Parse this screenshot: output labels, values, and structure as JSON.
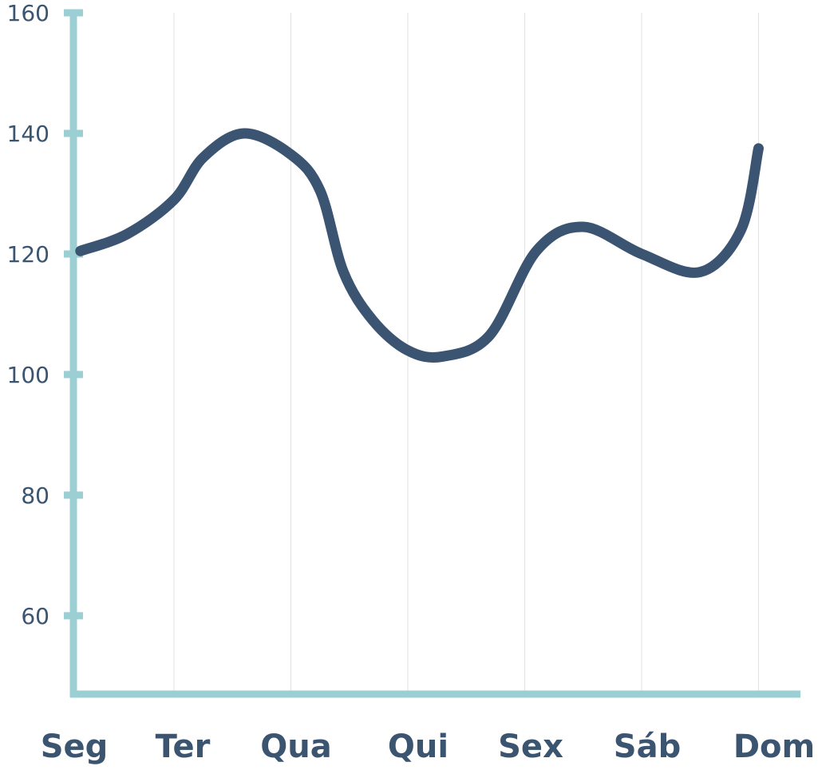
{
  "chart_data": {
    "type": "line",
    "categories": [
      "Seg",
      "Ter",
      "Qua",
      "Qui",
      "Sex",
      "Sáb",
      "Dom"
    ],
    "x_positions": [
      0.2,
      1.0,
      2.0,
      3.0,
      4.0,
      5.0,
      6.0
    ],
    "curve_points": [
      {
        "x": 0.2,
        "y": 120.5
      },
      {
        "x": 0.6,
        "y": 123.3
      },
      {
        "x": 1.0,
        "y": 129.0
      },
      {
        "x": 1.25,
        "y": 136.0
      },
      {
        "x": 1.6,
        "y": 140.0
      },
      {
        "x": 2.0,
        "y": 136.5
      },
      {
        "x": 2.25,
        "y": 130.5
      },
      {
        "x": 2.45,
        "y": 117.0
      },
      {
        "x": 2.7,
        "y": 109.0
      },
      {
        "x": 3.0,
        "y": 104.0
      },
      {
        "x": 3.3,
        "y": 103.0
      },
      {
        "x": 3.7,
        "y": 106.5
      },
      {
        "x": 4.1,
        "y": 120.5
      },
      {
        "x": 4.5,
        "y": 124.5
      },
      {
        "x": 5.0,
        "y": 120.0
      },
      {
        "x": 5.5,
        "y": 117.0
      },
      {
        "x": 5.85,
        "y": 124.0
      },
      {
        "x": 6.0,
        "y": 137.5
      }
    ],
    "yticks": [
      60,
      80,
      100,
      120,
      140,
      160
    ],
    "ylim": [
      47,
      160
    ],
    "grid": {
      "vertical": true,
      "horizontal": false
    },
    "title": "",
    "xlabel": "",
    "ylabel": ""
  },
  "colors": {
    "axis": "#9ccfd3",
    "line": "#3a5472",
    "label": "#3b5470",
    "grid": "#e2e2e2"
  }
}
